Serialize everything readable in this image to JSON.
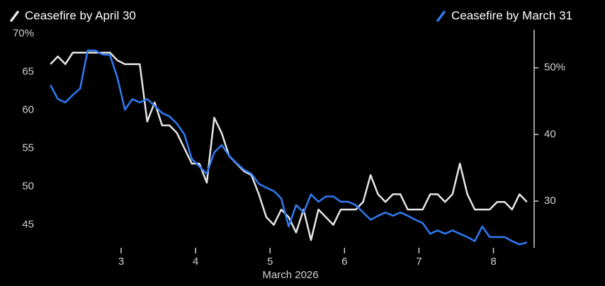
{
  "chart_data": {
    "type": "line",
    "x_label": "March 2026",
    "x": [
      2.05,
      2.15,
      2.25,
      2.35,
      2.45,
      2.55,
      2.65,
      2.75,
      2.85,
      2.95,
      3.05,
      3.15,
      3.25,
      3.35,
      3.45,
      3.55,
      3.65,
      3.75,
      3.85,
      3.95,
      4.05,
      4.15,
      4.25,
      4.35,
      4.45,
      4.55,
      4.65,
      4.75,
      4.85,
      4.95,
      5.05,
      5.15,
      5.25,
      5.35,
      5.45,
      5.55,
      5.65,
      5.75,
      5.85,
      5.95,
      6.05,
      6.15,
      6.25,
      6.35,
      6.45,
      6.55,
      6.65,
      6.75,
      6.85,
      6.95,
      7.05,
      7.15,
      7.25,
      7.35,
      7.45,
      7.55,
      7.65,
      7.75,
      7.85,
      7.95,
      8.05,
      8.15,
      8.25,
      8.35,
      8.45
    ],
    "series": [
      {
        "name": "Ceasefire by April 30",
        "color": "#e6e6e6",
        "axis": "y",
        "values": [
          66,
          67,
          66,
          67.5,
          67.5,
          67.5,
          67.5,
          67.5,
          67.5,
          66.5,
          66,
          66,
          66,
          58.5,
          61,
          58,
          58,
          57,
          55,
          53,
          53,
          50.5,
          59,
          57,
          54,
          53,
          52,
          51.5,
          49,
          46,
          45,
          47,
          46,
          44,
          47,
          43,
          47,
          46,
          45,
          47,
          47,
          47,
          48,
          51.5,
          49,
          48,
          49,
          49,
          47,
          47,
          47,
          49,
          49,
          48,
          49,
          53,
          49,
          47,
          47,
          47,
          48,
          48,
          47,
          49,
          48
        ]
      },
      {
        "name": "Ceasefire by March 31",
        "color": "#2f7bf5",
        "axis": "y2",
        "values": [
          47.4,
          45.3,
          44.8,
          45.9,
          46.9,
          52.6,
          52.6,
          52,
          51.9,
          48.5,
          43.7,
          45.3,
          44.8,
          45.3,
          44.3,
          43.2,
          42.7,
          41.6,
          40,
          36.3,
          35.2,
          34.1,
          37.3,
          38.4,
          36.8,
          35.7,
          34.7,
          34.1,
          32.6,
          32,
          31.5,
          30.4,
          26.2,
          29.4,
          28.3,
          31,
          29.9,
          30.7,
          30.7,
          29.9,
          29.9,
          29.4,
          28.3,
          27.2,
          27.8,
          28.3,
          27.8,
          28.3,
          27.8,
          27.2,
          26.7,
          25.1,
          25.6,
          25.1,
          25.6,
          25.1,
          24.6,
          24,
          26.2,
          24.6,
          24.6,
          24.6,
          24,
          23.5,
          23.8
        ]
      }
    ],
    "xlim": [
      2.02,
      8.49
    ],
    "xticks": [
      3,
      4,
      5,
      6,
      7,
      8
    ],
    "ylim": [
      42,
      70.5
    ],
    "yticks": [
      {
        "value": 70,
        "label": "70%"
      },
      65,
      60,
      55,
      50,
      45
    ],
    "y2lim": [
      23,
      55.7
    ],
    "y2ticks": [
      {
        "value": 50,
        "label": "50%"
      },
      40,
      30
    ]
  }
}
